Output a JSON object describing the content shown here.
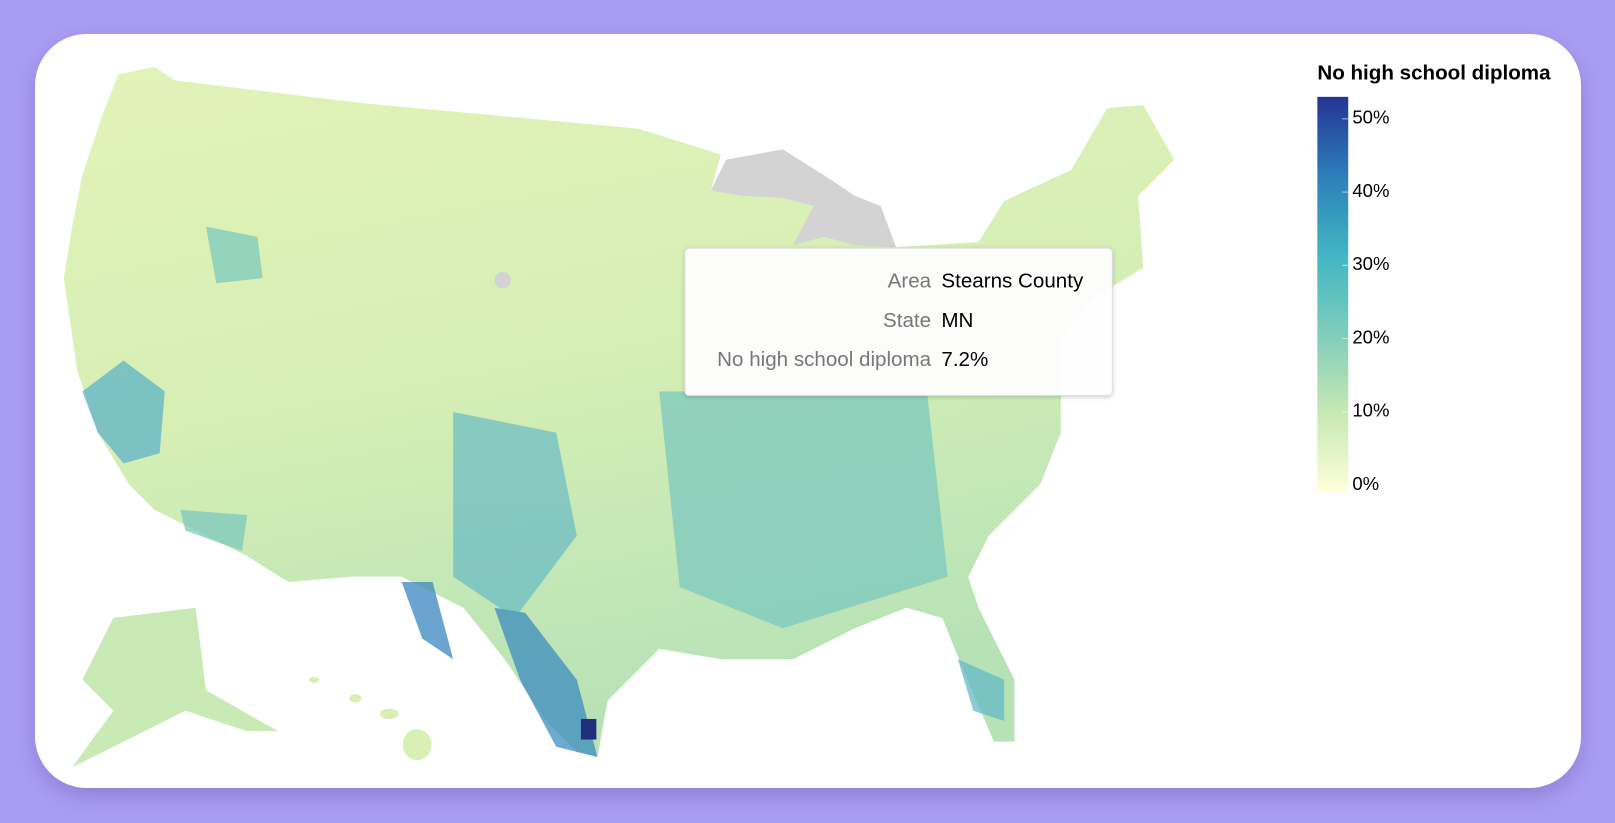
{
  "legend": {
    "title": "No high school diploma",
    "lim": [
      -1,
      53
    ],
    "ticks": [
      {
        "value": 0,
        "label": "0%"
      },
      {
        "value": 10,
        "label": "10%"
      },
      {
        "value": 20,
        "label": "20%"
      },
      {
        "value": 30,
        "label": "30%"
      },
      {
        "value": 40,
        "label": "40%"
      },
      {
        "value": 50,
        "label": "50%"
      }
    ]
  },
  "tooltip": {
    "rows": [
      {
        "label": "Area",
        "value": "Stearns County"
      },
      {
        "label": "State",
        "value": "MN"
      },
      {
        "label": "No high school diploma",
        "value": "7.2%"
      }
    ]
  }
}
